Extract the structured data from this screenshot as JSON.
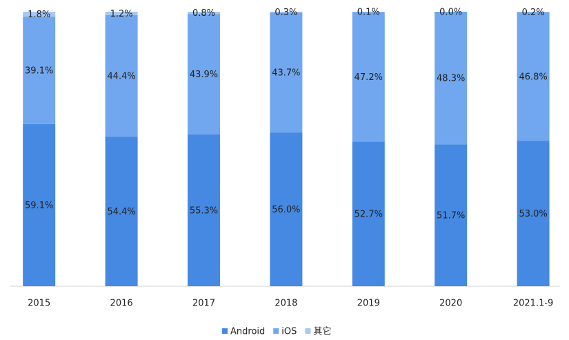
{
  "chart_data": {
    "type": "stacked_bar",
    "categories": [
      "2015",
      "2016",
      "2017",
      "2018",
      "2019",
      "2020",
      "2021.1-9"
    ],
    "ylim": [
      0,
      100
    ],
    "series": [
      {
        "name": "Android",
        "color": "#4589e3",
        "values": [
          59.1,
          54.4,
          55.3,
          56.0,
          52.7,
          51.7,
          53.0
        ],
        "value_labels": [
          "59.1%",
          "54.4%",
          "55.3%",
          "56.0%",
          "52.7%",
          "51.7%",
          "53.0%"
        ]
      },
      {
        "name": "iOS",
        "color": "#70a7ee",
        "values": [
          39.1,
          44.4,
          43.9,
          43.7,
          47.2,
          48.3,
          46.8
        ],
        "value_labels": [
          "39.1%",
          "44.4%",
          "43.9%",
          "43.7%",
          "47.2%",
          "48.3%",
          "46.8%"
        ]
      },
      {
        "name": "其它",
        "color": "#a6c8f3",
        "values": [
          1.8,
          1.2,
          0.8,
          0.3,
          0.1,
          0.0,
          0.2
        ],
        "value_labels": [
          "1.8%",
          "1.2%",
          "0.8%",
          "0.3%",
          "0.1%",
          "0.0%",
          "0.2%"
        ]
      }
    ],
    "legend": "bottom"
  }
}
